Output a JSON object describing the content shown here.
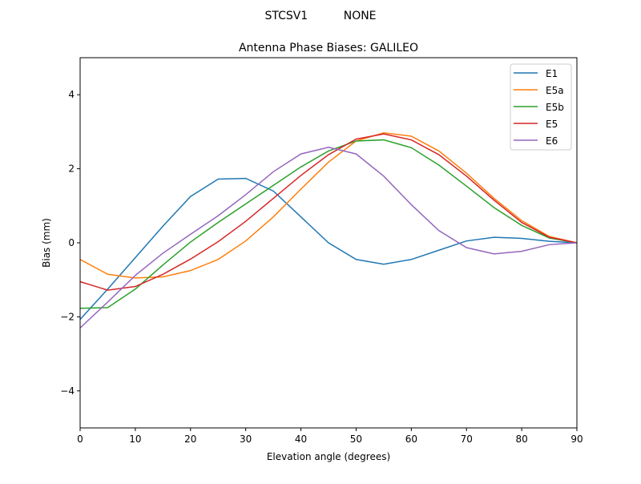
{
  "suptitle": "STCSV1          NONE",
  "chart_data": {
    "type": "line",
    "title": "Antenna Phase Biases: GALILEO",
    "xlabel": "Elevation angle (degrees)",
    "ylabel": "Bias (mm)",
    "xlim": [
      0,
      90
    ],
    "ylim": [
      -5,
      5
    ],
    "xticks": [
      0,
      10,
      20,
      30,
      40,
      50,
      60,
      70,
      80,
      90
    ],
    "yticks": [
      -4,
      -2,
      0,
      2,
      4
    ],
    "ytick_labels": [
      "−4",
      "−2",
      "0",
      "2",
      "4"
    ],
    "grid": false,
    "legend_position": "top-right",
    "x": [
      0,
      5,
      10,
      15,
      20,
      25,
      30,
      35,
      40,
      45,
      50,
      55,
      60,
      65,
      70,
      75,
      80,
      85,
      90
    ],
    "series": [
      {
        "name": "E1",
        "color": "#1f77b4",
        "values": [
          -2.07,
          -1.25,
          -0.4,
          0.45,
          1.25,
          1.72,
          1.74,
          1.4,
          0.7,
          0.0,
          -0.45,
          -0.58,
          -0.45,
          -0.2,
          0.05,
          0.15,
          0.12,
          0.04,
          0.0
        ]
      },
      {
        "name": "E5a",
        "color": "#ff7f0e",
        "values": [
          -0.45,
          -0.85,
          -0.95,
          -0.92,
          -0.75,
          -0.45,
          0.05,
          0.7,
          1.45,
          2.18,
          2.75,
          2.97,
          2.88,
          2.48,
          1.88,
          1.2,
          0.6,
          0.17,
          0.0
        ]
      },
      {
        "name": "E5b",
        "color": "#2ca02c",
        "values": [
          -1.77,
          -1.75,
          -1.25,
          -0.6,
          0.02,
          0.55,
          1.05,
          1.55,
          2.05,
          2.48,
          2.75,
          2.78,
          2.57,
          2.1,
          1.53,
          0.95,
          0.47,
          0.13,
          0.0
        ]
      },
      {
        "name": "E5",
        "color": "#d62728",
        "values": [
          -1.05,
          -1.28,
          -1.18,
          -0.85,
          -0.44,
          0.03,
          0.58,
          1.2,
          1.82,
          2.38,
          2.8,
          2.94,
          2.78,
          2.38,
          1.8,
          1.15,
          0.55,
          0.15,
          0.0
        ]
      },
      {
        "name": "E6",
        "color": "#9467bd",
        "values": [
          -2.3,
          -1.6,
          -0.88,
          -0.28,
          0.23,
          0.73,
          1.3,
          1.92,
          2.4,
          2.58,
          2.4,
          1.8,
          1.03,
          0.33,
          -0.13,
          -0.3,
          -0.23,
          -0.05,
          0.0
        ]
      }
    ]
  }
}
